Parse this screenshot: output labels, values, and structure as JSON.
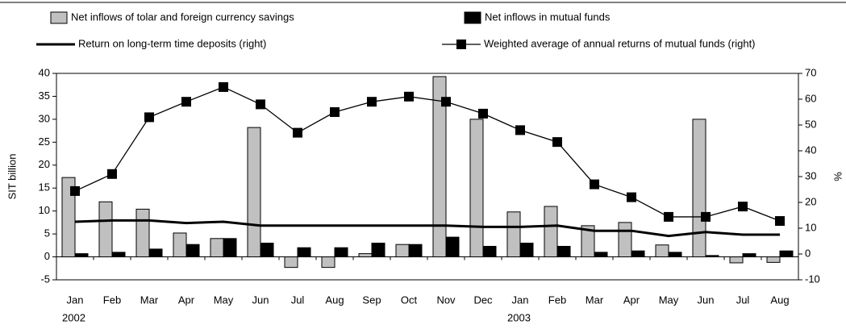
{
  "chart_data": {
    "type": "bar-line",
    "categories": [
      "Jan",
      "Feb",
      "Mar",
      "Apr",
      "May",
      "Jun",
      "Jul",
      "Aug",
      "Sep",
      "Oct",
      "Nov",
      "Dec",
      "Jan",
      "Feb",
      "Mar",
      "Apr",
      "May",
      "Jun",
      "Jul",
      "Aug"
    ],
    "x_groups": [
      {
        "label": "2002",
        "start": 0
      },
      {
        "label": "2003",
        "start": 12
      }
    ],
    "ylabel": "SIT billion",
    "y2label": "%",
    "ylim": [
      -5,
      40
    ],
    "yticks": [
      -5,
      0,
      5,
      10,
      15,
      20,
      25,
      30,
      35,
      40
    ],
    "y2lim": [
      -10,
      70
    ],
    "y2ticks": [
      -10,
      0,
      10,
      20,
      30,
      40,
      50,
      60,
      70
    ],
    "series": [
      {
        "name": "Net inflows of tolar and foreign currency savings",
        "type": "bar",
        "color": "#c0c0c0",
        "values": [
          17.3,
          12,
          10.4,
          5.2,
          4,
          28.2,
          -2.3,
          -2.3,
          0.7,
          2.7,
          39.3,
          30,
          9.8,
          11,
          6.8,
          7.5,
          2.6,
          30,
          -1.3,
          -1.2
        ]
      },
      {
        "name": "Net inflows in mutual funds",
        "type": "bar",
        "color": "#000000",
        "values": [
          0.7,
          1,
          1.7,
          2.7,
          4,
          3,
          2,
          2,
          3,
          2.7,
          4.3,
          2.3,
          3,
          2.3,
          1,
          1.3,
          1,
          0.3,
          0.7,
          1.3
        ]
      },
      {
        "name": "Return on long-term time deposits (right)",
        "type": "line",
        "color": "#000000",
        "axis": "y2",
        "values": [
          12.5,
          13,
          13,
          12,
          12.5,
          11,
          11,
          11,
          11,
          11,
          11,
          10.5,
          10.5,
          11,
          9,
          9,
          7,
          8.5,
          7.5,
          7.5
        ]
      },
      {
        "name": "Weighted average of annual returns of mutual funds (right)",
        "type": "line-marker",
        "color": "#000000",
        "axis": "y2",
        "values": [
          24.4,
          31,
          53,
          59,
          64.7,
          58,
          47,
          55,
          59,
          61,
          59,
          54.4,
          48,
          43.4,
          27,
          22,
          14.4,
          14.4,
          18.4,
          12.8
        ]
      }
    ]
  }
}
